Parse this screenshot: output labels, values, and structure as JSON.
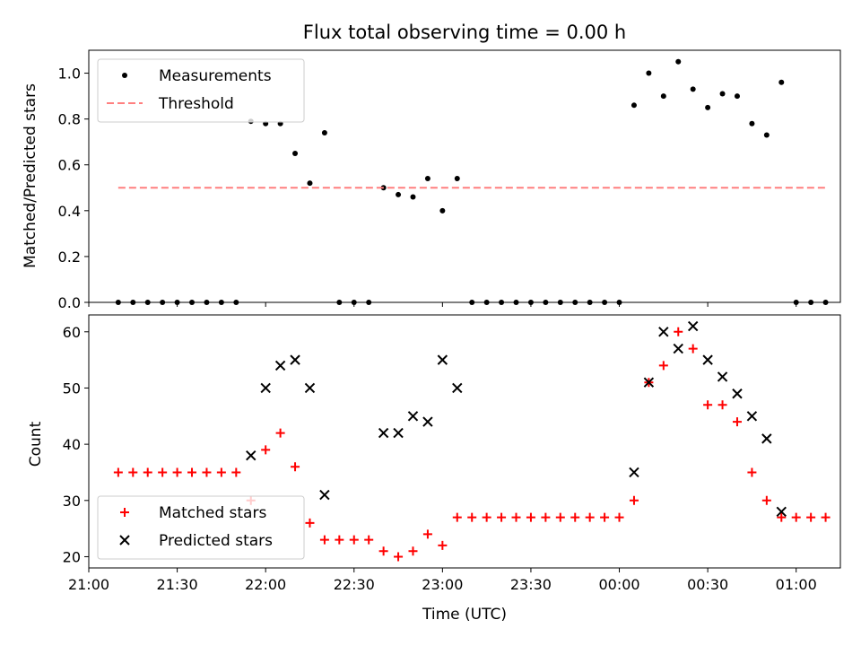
{
  "chart_data": [
    {
      "type": "scatter",
      "panel": "top",
      "title": "Flux total observing time = 0.00 h",
      "xlabel": "",
      "ylabel": "Matched/Predicted stars",
      "xlim": [
        "21:00",
        "01:15"
      ],
      "ylim": [
        0,
        1.1
      ],
      "yticks": [
        "0.0",
        "0.2",
        "0.4",
        "0.6",
        "0.8",
        "1.0"
      ],
      "legend_position": "top-left",
      "grid": false,
      "series": [
        {
          "name": "Measurements",
          "marker": "dot",
          "color": "#000000",
          "points": [
            [
              "21:10",
              0
            ],
            [
              "21:15",
              0
            ],
            [
              "21:20",
              0
            ],
            [
              "21:25",
              0
            ],
            [
              "21:30",
              0
            ],
            [
              "21:35",
              0
            ],
            [
              "21:40",
              0
            ],
            [
              "21:45",
              0
            ],
            [
              "21:50",
              0
            ],
            [
              "21:55",
              0.79
            ],
            [
              "22:00",
              0.78
            ],
            [
              "22:05",
              0.78
            ],
            [
              "22:10",
              0.65
            ],
            [
              "22:15",
              0.52
            ],
            [
              "22:20",
              0.74
            ],
            [
              "22:25",
              0
            ],
            [
              "22:30",
              0
            ],
            [
              "22:35",
              0
            ],
            [
              "22:40",
              0.5
            ],
            [
              "22:45",
              0.47
            ],
            [
              "22:50",
              0.46
            ],
            [
              "22:55",
              0.54
            ],
            [
              "23:00",
              0.4
            ],
            [
              "23:05",
              0.54
            ],
            [
              "23:10",
              0
            ],
            [
              "23:15",
              0
            ],
            [
              "23:20",
              0
            ],
            [
              "23:25",
              0
            ],
            [
              "23:30",
              0
            ],
            [
              "23:35",
              0
            ],
            [
              "23:40",
              0
            ],
            [
              "23:45",
              0
            ],
            [
              "23:50",
              0
            ],
            [
              "23:55",
              0
            ],
            [
              "00:00",
              0
            ],
            [
              "00:05",
              0.86
            ],
            [
              "00:10",
              1.0
            ],
            [
              "00:15",
              0.9
            ],
            [
              "00:20",
              1.05
            ],
            [
              "00:25",
              0.93
            ],
            [
              "00:30",
              0.85
            ],
            [
              "00:35",
              0.91
            ],
            [
              "00:40",
              0.9
            ],
            [
              "00:45",
              0.78
            ],
            [
              "00:50",
              0.73
            ],
            [
              "00:55",
              0.96
            ],
            [
              "01:00",
              0
            ],
            [
              "01:05",
              0
            ],
            [
              "01:10",
              0
            ]
          ]
        },
        {
          "name": "Threshold",
          "marker": "dashed-line",
          "color": "#ff7f7f",
          "points": [
            [
              "21:10",
              0.5
            ],
            [
              "01:10",
              0.5
            ]
          ]
        }
      ]
    },
    {
      "type": "scatter",
      "panel": "bottom",
      "title": "",
      "xlabel": "Time (UTC)",
      "ylabel": "Count",
      "xlim": [
        "21:00",
        "01:15"
      ],
      "ylim": [
        18,
        63
      ],
      "yticks": [
        "20",
        "30",
        "40",
        "50",
        "60"
      ],
      "xticks": [
        "21:00",
        "21:30",
        "22:00",
        "22:30",
        "23:00",
        "23:30",
        "00:00",
        "00:30",
        "01:00"
      ],
      "legend_position": "bottom-left",
      "grid": false,
      "series": [
        {
          "name": "Matched stars",
          "marker": "plus",
          "color": "#ff0000",
          "points": [
            [
              "21:10",
              35
            ],
            [
              "21:15",
              35
            ],
            [
              "21:20",
              35
            ],
            [
              "21:25",
              35
            ],
            [
              "21:30",
              35
            ],
            [
              "21:35",
              35
            ],
            [
              "21:40",
              35
            ],
            [
              "21:45",
              35
            ],
            [
              "21:50",
              35
            ],
            [
              "21:55",
              30
            ],
            [
              "22:00",
              39
            ],
            [
              "22:05",
              42
            ],
            [
              "22:10",
              36
            ],
            [
              "22:15",
              26
            ],
            [
              "22:20",
              23
            ],
            [
              "22:25",
              23
            ],
            [
              "22:30",
              23
            ],
            [
              "22:35",
              23
            ],
            [
              "22:40",
              21
            ],
            [
              "22:45",
              20
            ],
            [
              "22:50",
              21
            ],
            [
              "22:55",
              24
            ],
            [
              "23:00",
              22
            ],
            [
              "23:05",
              27
            ],
            [
              "23:10",
              27
            ],
            [
              "23:15",
              27
            ],
            [
              "23:20",
              27
            ],
            [
              "23:25",
              27
            ],
            [
              "23:30",
              27
            ],
            [
              "23:35",
              27
            ],
            [
              "23:40",
              27
            ],
            [
              "23:45",
              27
            ],
            [
              "23:50",
              27
            ],
            [
              "23:55",
              27
            ],
            [
              "00:00",
              27
            ],
            [
              "00:05",
              30
            ],
            [
              "00:10",
              51
            ],
            [
              "00:15",
              54
            ],
            [
              "00:20",
              60
            ],
            [
              "00:25",
              57
            ],
            [
              "00:30",
              47
            ],
            [
              "00:35",
              47
            ],
            [
              "00:40",
              44
            ],
            [
              "00:45",
              35
            ],
            [
              "00:50",
              30
            ],
            [
              "00:55",
              27
            ],
            [
              "01:00",
              27
            ],
            [
              "01:05",
              27
            ],
            [
              "01:10",
              27
            ]
          ]
        },
        {
          "name": "Predicted stars",
          "marker": "x",
          "color": "#000000",
          "points": [
            [
              "21:55",
              38
            ],
            [
              "22:00",
              50
            ],
            [
              "22:05",
              54
            ],
            [
              "22:10",
              55
            ],
            [
              "22:15",
              50
            ],
            [
              "22:20",
              31
            ],
            [
              "22:40",
              42
            ],
            [
              "22:45",
              42
            ],
            [
              "22:50",
              45
            ],
            [
              "22:55",
              44
            ],
            [
              "23:00",
              55
            ],
            [
              "23:05",
              50
            ],
            [
              "00:05",
              35
            ],
            [
              "00:10",
              51
            ],
            [
              "00:15",
              60
            ],
            [
              "00:20",
              57
            ],
            [
              "00:25",
              61
            ],
            [
              "00:30",
              55
            ],
            [
              "00:35",
              52
            ],
            [
              "00:40",
              49
            ],
            [
              "00:45",
              45
            ],
            [
              "00:50",
              41
            ],
            [
              "00:55",
              28
            ]
          ]
        }
      ]
    }
  ]
}
